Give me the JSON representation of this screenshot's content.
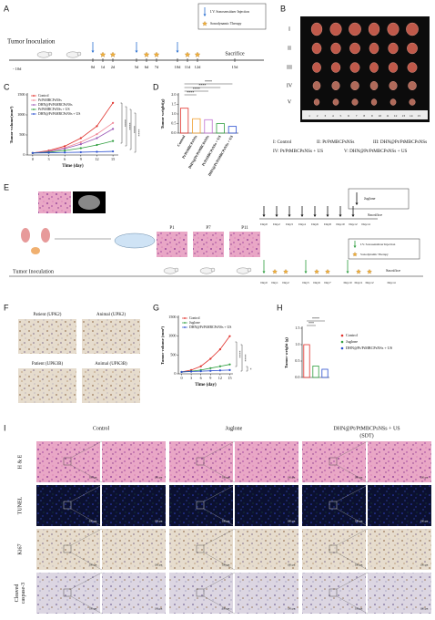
{
  "panel_labels": [
    "A",
    "B",
    "C",
    "D",
    "E",
    "F",
    "G",
    "H",
    "I"
  ],
  "timeline_a": {
    "start": "Tumor Inoculation",
    "pre": "- 10d",
    "days": [
      "0d",
      "1d",
      "2d",
      "5d",
      "6d",
      "7d",
      "10d",
      "11d",
      "12d",
      "15d"
    ],
    "end": "Sacrifice",
    "legend": [
      "I.V. Sonosensitizer Injection",
      "Sonodynamic Therapy"
    ]
  },
  "photo_b": {
    "rows": [
      "I",
      "II",
      "III",
      "IV",
      "V"
    ],
    "ruler": [
      1,
      2,
      3,
      4,
      5,
      6,
      7,
      8,
      9,
      10,
      11,
      12,
      13,
      14,
      15
    ],
    "key": [
      "I: Control",
      "II: Pt/PtMBCPsNSs",
      "III: DHN@Pt/PtMBCPsNSs",
      "IV: Pt/PtMBCPsNSs + US",
      "V: DHN@Pt/PtMBCPsNSs + US"
    ]
  },
  "schematic_e": {
    "start": "Tumor Inoculation",
    "passages": [
      "P1",
      "P7",
      "P11"
    ],
    "juglone_legend": "Juglone",
    "juglone_days": [
      "Day0",
      "Day2",
      "Day3",
      "Day4",
      "Day6",
      "Day8",
      "Day10",
      "Day12",
      "Day14"
    ],
    "sacrifice": "Sacrifice",
    "sdt_legend": [
      "I.V. Sonosensitizer Injection",
      "Sonodynamic Therapy"
    ],
    "sdt_days": [
      "Day0",
      "Day1",
      "Day2",
      "Day5",
      "Day6",
      "Day7",
      "Day10",
      "Day11",
      "Day12",
      "Day14"
    ]
  },
  "ihc_f": [
    "Patient (UPK2)",
    "Animal (UPK2)",
    "Patient (UPK3B)",
    "Animal (UPK3B)"
  ],
  "histology_i": {
    "columns": [
      [
        "Control"
      ],
      [
        "Juglone"
      ],
      [
        "DHN@Pt/PtMBCPsNSs + US",
        "(SDT)"
      ]
    ],
    "rows": [
      [
        "H & E"
      ],
      [
        "TUNEL"
      ],
      [
        "Ki67"
      ],
      [
        "Cleaved",
        "caspase-3"
      ]
    ],
    "scale_bars": [
      "500 μm",
      "100 μm"
    ]
  },
  "chart_data": [
    {
      "type": "line",
      "x_label": "Time (day)",
      "y_label": "Tumor volume(mm³)",
      "x": [
        0,
        3,
        6,
        9,
        12,
        15
      ],
      "xlim": [
        -1,
        16
      ],
      "xticks": [
        0,
        3,
        6,
        9,
        12,
        15
      ],
      "ylim": [
        0,
        1500
      ],
      "yticks": [
        0,
        500,
        1000,
        1500
      ],
      "legend": "upper left",
      "series": [
        {
          "name": "Control",
          "color": "#e0302a",
          "values": [
            50,
            110,
            220,
            420,
            720,
            1300
          ]
        },
        {
          "name": "Pt/PtMBCPsNSs",
          "color": "#f08a9a",
          "values": [
            50,
            95,
            180,
            320,
            520,
            800
          ]
        },
        {
          "name": "DHN@Pt/PtMBCPsNSs",
          "color": "#9b59b6",
          "values": [
            50,
            85,
            160,
            270,
            420,
            650
          ]
        },
        {
          "name": "Pt/PtMBCPsNSs + US",
          "color": "#2e9e3e",
          "values": [
            50,
            70,
            110,
            170,
            250,
            350
          ]
        },
        {
          "name": "DHN@Pt/PtMBCPsNSs + US",
          "color": "#2a4fd0",
          "values": [
            50,
            55,
            62,
            70,
            80,
            90
          ]
        }
      ],
      "annotations": [
        "****",
        "****",
        "****",
        "****"
      ]
    },
    {
      "type": "bar",
      "y_label": "Tumor weight(g)",
      "categories": [
        "Control",
        "Pt/PtMBCPsNSs",
        "DHN@Pt/PtMBCPsNSs",
        "Pt/PtMBCPsNSs + US",
        "DHN@Pt/PtMBCPsNSs + US"
      ],
      "values": [
        1.3,
        0.75,
        0.7,
        0.5,
        0.35
      ],
      "colors": [
        "#e0302a",
        "#f0a030",
        "#c070d0",
        "#2e9e3e",
        "#2a4fd0"
      ],
      "ylim": [
        0,
        2
      ],
      "yticks": [
        {
          "value": 0,
          "label": "0.0"
        },
        {
          "value": 0.5,
          "label": "0.5"
        },
        {
          "value": 1,
          "label": "1.0"
        },
        {
          "value": 1.5,
          "label": "1.5"
        },
        {
          "value": 2,
          "label": "2.0"
        }
      ],
      "annotations": [
        "****",
        "****",
        "****",
        "****"
      ]
    },
    {
      "type": "line",
      "x_label": "Time (day)",
      "y_label": "Tumor volume (mm³)",
      "x": [
        0,
        3,
        6,
        9,
        12,
        15
      ],
      "xlim": [
        -1,
        16
      ],
      "xticks": [
        0,
        3,
        6,
        9,
        12,
        15
      ],
      "ylim": [
        0,
        1500
      ],
      "yticks": [
        0,
        500,
        1000,
        1500
      ],
      "legend": "upper left",
      "series": [
        {
          "name": "Control",
          "color": "#e0302a",
          "values": [
            50,
            100,
            200,
            400,
            650,
            1000
          ]
        },
        {
          "name": "Juglone",
          "color": "#2e9e3e",
          "values": [
            50,
            70,
            100,
            150,
            200,
            250
          ]
        },
        {
          "name": "DHN@Pt/PtMBCPsNSs + US",
          "color": "#2a4fd0",
          "values": [
            50,
            60,
            70,
            80,
            90,
            100
          ]
        }
      ],
      "annotations": [
        "****",
        "****",
        "*"
      ]
    },
    {
      "type": "bar",
      "y_label": "Tumor weight (g)",
      "categories": [
        "Control",
        "Juglone",
        "DHN@Pt/PtMBCPsNSs + US"
      ],
      "values": [
        1.0,
        0.35,
        0.25
      ],
      "colors": [
        "#e0302a",
        "#2e9e3e",
        "#2a4fd0"
      ],
      "ylim": [
        0,
        1.5
      ],
      "yticks": [
        {
          "value": 0,
          "label": "0.0"
        },
        {
          "value": 0.5,
          "label": "0.5"
        },
        {
          "value": 1,
          "label": "1.0"
        },
        {
          "value": 1.5,
          "label": "1.5"
        }
      ],
      "legend": "right",
      "annotations": [
        "****",
        "***"
      ]
    }
  ]
}
